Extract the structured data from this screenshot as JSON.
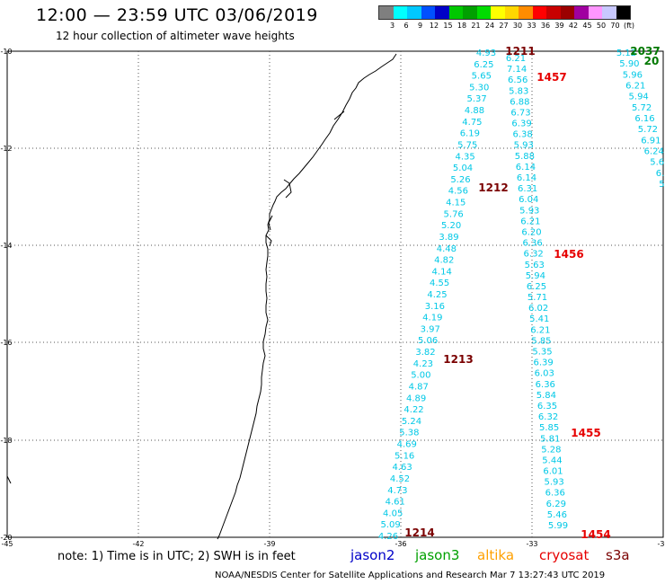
{
  "header": {
    "title": "12:00 — 23:59 UTC 03/06/2019",
    "subtitle": "12 hour collection of altimeter wave heights"
  },
  "legend": {
    "colors": [
      "#7f7f7f",
      "#00ffff",
      "#00c8ff",
      "#0050ff",
      "#0000c8",
      "#00c800",
      "#00a000",
      "#00dc00",
      "#ffff00",
      "#ffd700",
      "#ff8c00",
      "#ff0000",
      "#c80000",
      "#9b0000",
      "#a000a0",
      "#ff96ff",
      "#c8c8ff",
      "#000000"
    ],
    "labels": [
      "3",
      "6",
      "9",
      "12",
      "15",
      "18",
      "21",
      "24",
      "27",
      "30",
      "33",
      "36",
      "39",
      "42",
      "45",
      "50",
      "70",
      "(ft)"
    ]
  },
  "axes": {
    "lat_labels": [
      "-10",
      "-12",
      "-14",
      "-16",
      "-18",
      "-20"
    ],
    "lon_labels": [
      "-45",
      "-42",
      "-39",
      "-36",
      "-33",
      "-30"
    ]
  },
  "tracks": [
    {
      "name": "track-west",
      "color": "#00c8e6",
      "values": [
        "4.93",
        "6.25",
        "5.65",
        "5.30",
        "5.37",
        "4.88",
        "4.75",
        "6.19",
        "5.75",
        "4.35",
        "5.04",
        "5.26",
        "4.56",
        "4.15",
        "5.76",
        "5.20",
        "3.89",
        "4.48",
        "4.82",
        "4.14",
        "4.55",
        "4.25",
        "3.16",
        "4.19",
        "3.97",
        "5.06",
        "3.82",
        "4.23",
        "5.00",
        "4.87",
        "4.89",
        "4.22",
        "5.24",
        "5.38",
        "4.69",
        "5.16",
        "4.63",
        "4.52",
        "4.73",
        "4.61",
        "4.05",
        "5.09",
        "4.26"
      ]
    },
    {
      "name": "track-middle",
      "color": "#00c8e6",
      "values": [
        "6.21",
        "7.14",
        "6.56",
        "5.83",
        "6.88",
        "6.73",
        "6.39",
        "6.38",
        "5.93",
        "5.88",
        "6.14",
        "6.14",
        "6.31",
        "6.04",
        "5.93",
        "6.21",
        "6.20",
        "6.36",
        "6.32",
        "5.63",
        "5.94",
        "6.25",
        "5.71",
        "6.02",
        "5.41",
        "6.21",
        "5.85",
        "5.35",
        "6.39",
        "6.03",
        "6.36",
        "5.84",
        "6.35",
        "6.32",
        "5.85",
        "5.81",
        "5.28",
        "5.44",
        "6.01",
        "5.93",
        "6.36",
        "6.29",
        "5.46",
        "5.99"
      ]
    },
    {
      "name": "track-east",
      "color": "#00c8e6",
      "values": [
        "5.12",
        "5.90",
        "5.96",
        "6.21",
        "5.94",
        "5.72",
        "6.16",
        "5.72",
        "6.91",
        "6.24",
        "5.6",
        "6.",
        "5."
      ]
    }
  ],
  "time_labels": [
    {
      "text": "1211",
      "color": "#7a0000"
    },
    {
      "text": "1457",
      "color": "#e60000"
    },
    {
      "text": "1212",
      "color": "#7a0000"
    },
    {
      "text": "1456",
      "color": "#e60000"
    },
    {
      "text": "1213",
      "color": "#7a0000"
    },
    {
      "text": "1455",
      "color": "#e60000"
    },
    {
      "text": "1214",
      "color": "#7a0000"
    },
    {
      "text": "1454",
      "color": "#e60000"
    },
    {
      "text": "2037",
      "color": "#007800"
    },
    {
      "text": "20",
      "color": "#007800"
    }
  ],
  "note": "note: 1) Time is in UTC; 2) SWH is in feet",
  "missions": [
    {
      "name": "jason2",
      "color": "#0000c8"
    },
    {
      "name": "jason3",
      "color": "#00a000"
    },
    {
      "name": "altika",
      "color": "#ffa000"
    },
    {
      "name": "cryosat",
      "color": "#e60000"
    },
    {
      "name": "s3a",
      "color": "#7a0000"
    }
  ],
  "footer": "NOAA/NESDIS Center for Satellite Applications and Research   Mar  7 13:27:43 UTC 2019"
}
